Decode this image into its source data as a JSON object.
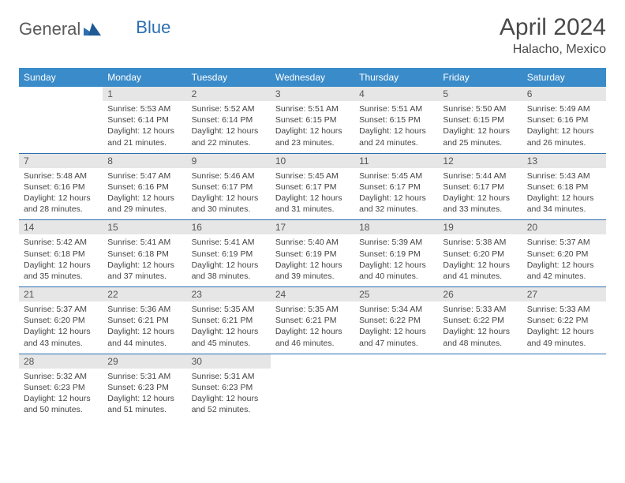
{
  "logo": {
    "text1": "General",
    "text2": "Blue"
  },
  "header": {
    "title": "April 2024",
    "location": "Halacho, Mexico"
  },
  "days_of_week": [
    "Sunday",
    "Monday",
    "Tuesday",
    "Wednesday",
    "Thursday",
    "Friday",
    "Saturday"
  ],
  "colors": {
    "header_bg": "#3a8bc9",
    "header_text": "#ffffff",
    "daynum_bg": "#e6e6e6",
    "border": "#2c6fb0",
    "text": "#444444"
  },
  "weeks": [
    [
      null,
      {
        "n": "1",
        "sunrise": "Sunrise: 5:53 AM",
        "sunset": "Sunset: 6:14 PM",
        "day1": "Daylight: 12 hours",
        "day2": "and 21 minutes."
      },
      {
        "n": "2",
        "sunrise": "Sunrise: 5:52 AM",
        "sunset": "Sunset: 6:14 PM",
        "day1": "Daylight: 12 hours",
        "day2": "and 22 minutes."
      },
      {
        "n": "3",
        "sunrise": "Sunrise: 5:51 AM",
        "sunset": "Sunset: 6:15 PM",
        "day1": "Daylight: 12 hours",
        "day2": "and 23 minutes."
      },
      {
        "n": "4",
        "sunrise": "Sunrise: 5:51 AM",
        "sunset": "Sunset: 6:15 PM",
        "day1": "Daylight: 12 hours",
        "day2": "and 24 minutes."
      },
      {
        "n": "5",
        "sunrise": "Sunrise: 5:50 AM",
        "sunset": "Sunset: 6:15 PM",
        "day1": "Daylight: 12 hours",
        "day2": "and 25 minutes."
      },
      {
        "n": "6",
        "sunrise": "Sunrise: 5:49 AM",
        "sunset": "Sunset: 6:16 PM",
        "day1": "Daylight: 12 hours",
        "day2": "and 26 minutes."
      }
    ],
    [
      {
        "n": "7",
        "sunrise": "Sunrise: 5:48 AM",
        "sunset": "Sunset: 6:16 PM",
        "day1": "Daylight: 12 hours",
        "day2": "and 28 minutes."
      },
      {
        "n": "8",
        "sunrise": "Sunrise: 5:47 AM",
        "sunset": "Sunset: 6:16 PM",
        "day1": "Daylight: 12 hours",
        "day2": "and 29 minutes."
      },
      {
        "n": "9",
        "sunrise": "Sunrise: 5:46 AM",
        "sunset": "Sunset: 6:17 PM",
        "day1": "Daylight: 12 hours",
        "day2": "and 30 minutes."
      },
      {
        "n": "10",
        "sunrise": "Sunrise: 5:45 AM",
        "sunset": "Sunset: 6:17 PM",
        "day1": "Daylight: 12 hours",
        "day2": "and 31 minutes."
      },
      {
        "n": "11",
        "sunrise": "Sunrise: 5:45 AM",
        "sunset": "Sunset: 6:17 PM",
        "day1": "Daylight: 12 hours",
        "day2": "and 32 minutes."
      },
      {
        "n": "12",
        "sunrise": "Sunrise: 5:44 AM",
        "sunset": "Sunset: 6:17 PM",
        "day1": "Daylight: 12 hours",
        "day2": "and 33 minutes."
      },
      {
        "n": "13",
        "sunrise": "Sunrise: 5:43 AM",
        "sunset": "Sunset: 6:18 PM",
        "day1": "Daylight: 12 hours",
        "day2": "and 34 minutes."
      }
    ],
    [
      {
        "n": "14",
        "sunrise": "Sunrise: 5:42 AM",
        "sunset": "Sunset: 6:18 PM",
        "day1": "Daylight: 12 hours",
        "day2": "and 35 minutes."
      },
      {
        "n": "15",
        "sunrise": "Sunrise: 5:41 AM",
        "sunset": "Sunset: 6:18 PM",
        "day1": "Daylight: 12 hours",
        "day2": "and 37 minutes."
      },
      {
        "n": "16",
        "sunrise": "Sunrise: 5:41 AM",
        "sunset": "Sunset: 6:19 PM",
        "day1": "Daylight: 12 hours",
        "day2": "and 38 minutes."
      },
      {
        "n": "17",
        "sunrise": "Sunrise: 5:40 AM",
        "sunset": "Sunset: 6:19 PM",
        "day1": "Daylight: 12 hours",
        "day2": "and 39 minutes."
      },
      {
        "n": "18",
        "sunrise": "Sunrise: 5:39 AM",
        "sunset": "Sunset: 6:19 PM",
        "day1": "Daylight: 12 hours",
        "day2": "and 40 minutes."
      },
      {
        "n": "19",
        "sunrise": "Sunrise: 5:38 AM",
        "sunset": "Sunset: 6:20 PM",
        "day1": "Daylight: 12 hours",
        "day2": "and 41 minutes."
      },
      {
        "n": "20",
        "sunrise": "Sunrise: 5:37 AM",
        "sunset": "Sunset: 6:20 PM",
        "day1": "Daylight: 12 hours",
        "day2": "and 42 minutes."
      }
    ],
    [
      {
        "n": "21",
        "sunrise": "Sunrise: 5:37 AM",
        "sunset": "Sunset: 6:20 PM",
        "day1": "Daylight: 12 hours",
        "day2": "and 43 minutes."
      },
      {
        "n": "22",
        "sunrise": "Sunrise: 5:36 AM",
        "sunset": "Sunset: 6:21 PM",
        "day1": "Daylight: 12 hours",
        "day2": "and 44 minutes."
      },
      {
        "n": "23",
        "sunrise": "Sunrise: 5:35 AM",
        "sunset": "Sunset: 6:21 PM",
        "day1": "Daylight: 12 hours",
        "day2": "and 45 minutes."
      },
      {
        "n": "24",
        "sunrise": "Sunrise: 5:35 AM",
        "sunset": "Sunset: 6:21 PM",
        "day1": "Daylight: 12 hours",
        "day2": "and 46 minutes."
      },
      {
        "n": "25",
        "sunrise": "Sunrise: 5:34 AM",
        "sunset": "Sunset: 6:22 PM",
        "day1": "Daylight: 12 hours",
        "day2": "and 47 minutes."
      },
      {
        "n": "26",
        "sunrise": "Sunrise: 5:33 AM",
        "sunset": "Sunset: 6:22 PM",
        "day1": "Daylight: 12 hours",
        "day2": "and 48 minutes."
      },
      {
        "n": "27",
        "sunrise": "Sunrise: 5:33 AM",
        "sunset": "Sunset: 6:22 PM",
        "day1": "Daylight: 12 hours",
        "day2": "and 49 minutes."
      }
    ],
    [
      {
        "n": "28",
        "sunrise": "Sunrise: 5:32 AM",
        "sunset": "Sunset: 6:23 PM",
        "day1": "Daylight: 12 hours",
        "day2": "and 50 minutes."
      },
      {
        "n": "29",
        "sunrise": "Sunrise: 5:31 AM",
        "sunset": "Sunset: 6:23 PM",
        "day1": "Daylight: 12 hours",
        "day2": "and 51 minutes."
      },
      {
        "n": "30",
        "sunrise": "Sunrise: 5:31 AM",
        "sunset": "Sunset: 6:23 PM",
        "day1": "Daylight: 12 hours",
        "day2": "and 52 minutes."
      },
      null,
      null,
      null,
      null
    ]
  ]
}
